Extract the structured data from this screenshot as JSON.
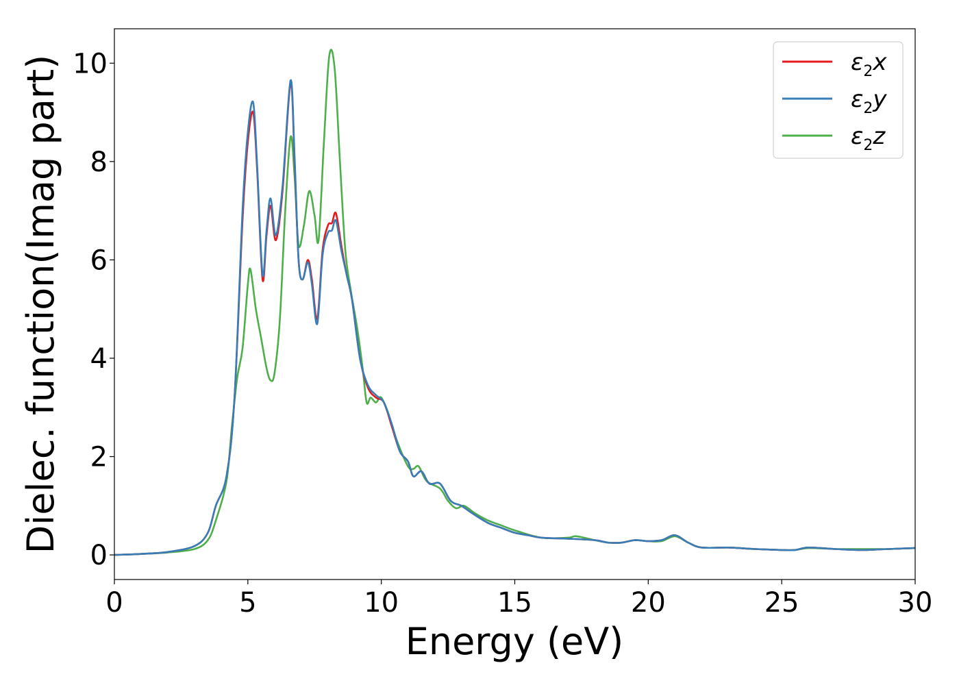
{
  "chart_data": {
    "type": "line",
    "title": "",
    "xlabel": "Energy (eV)",
    "ylabel": "Dielec. function(Imag part)",
    "xlim": [
      0,
      30
    ],
    "ylim": [
      -0.5,
      10.7
    ],
    "xticks": [
      0,
      5,
      10,
      15,
      20,
      25,
      30
    ],
    "yticks": [
      0,
      2,
      4,
      6,
      8,
      10
    ],
    "grid": false,
    "legend_position": "top-right",
    "series": [
      {
        "name": "ε2x",
        "label_main": "ε",
        "label_sub": "2",
        "label_suffix": "x",
        "color": "#e41a1c",
        "points": [
          [
            0,
            0.0
          ],
          [
            1,
            0.02
          ],
          [
            2,
            0.06
          ],
          [
            3,
            0.18
          ],
          [
            3.5,
            0.45
          ],
          [
            3.8,
            1.0
          ],
          [
            4.2,
            1.6
          ],
          [
            4.5,
            3.2
          ],
          [
            4.8,
            6.8
          ],
          [
            5.0,
            8.4
          ],
          [
            5.2,
            9.0
          ],
          [
            5.35,
            7.8
          ],
          [
            5.55,
            5.6
          ],
          [
            5.7,
            6.5
          ],
          [
            5.85,
            7.1
          ],
          [
            6.05,
            6.4
          ],
          [
            6.3,
            7.4
          ],
          [
            6.6,
            9.6
          ],
          [
            6.75,
            8.0
          ],
          [
            6.9,
            6.0
          ],
          [
            7.05,
            5.6
          ],
          [
            7.25,
            6.0
          ],
          [
            7.4,
            5.6
          ],
          [
            7.6,
            4.8
          ],
          [
            7.8,
            6.2
          ],
          [
            8.0,
            6.7
          ],
          [
            8.15,
            6.75
          ],
          [
            8.3,
            6.95
          ],
          [
            8.5,
            6.3
          ],
          [
            8.7,
            5.7
          ],
          [
            8.9,
            5.2
          ],
          [
            9.2,
            4.0
          ],
          [
            9.5,
            3.4
          ],
          [
            9.8,
            3.2
          ],
          [
            10.1,
            3.1
          ],
          [
            10.4,
            2.6
          ],
          [
            10.7,
            2.1
          ],
          [
            11.0,
            1.9
          ],
          [
            11.2,
            1.6
          ],
          [
            11.5,
            1.7
          ],
          [
            11.8,
            1.45
          ],
          [
            12.2,
            1.45
          ],
          [
            12.6,
            1.1
          ],
          [
            13.0,
            1.0
          ],
          [
            13.4,
            0.85
          ],
          [
            14.0,
            0.65
          ],
          [
            14.5,
            0.55
          ],
          [
            15.0,
            0.45
          ],
          [
            15.5,
            0.4
          ],
          [
            16.0,
            0.35
          ],
          [
            17.0,
            0.33
          ],
          [
            18.0,
            0.3
          ],
          [
            18.5,
            0.25
          ],
          [
            19.0,
            0.25
          ],
          [
            19.5,
            0.3
          ],
          [
            20.0,
            0.28
          ],
          [
            20.5,
            0.3
          ],
          [
            21.0,
            0.4
          ],
          [
            21.5,
            0.25
          ],
          [
            22.0,
            0.15
          ],
          [
            23.0,
            0.15
          ],
          [
            24.0,
            0.12
          ],
          [
            25.0,
            0.1
          ],
          [
            25.5,
            0.1
          ],
          [
            26.0,
            0.15
          ],
          [
            27.0,
            0.12
          ],
          [
            28.0,
            0.1
          ],
          [
            29.0,
            0.12
          ],
          [
            30.0,
            0.14
          ]
        ]
      },
      {
        "name": "ε2y",
        "label_main": "ε",
        "label_sub": "2",
        "label_suffix": "y",
        "color": "#377eb8",
        "points": [
          [
            0,
            0.0
          ],
          [
            1,
            0.02
          ],
          [
            2,
            0.06
          ],
          [
            3,
            0.18
          ],
          [
            3.5,
            0.45
          ],
          [
            3.8,
            1.0
          ],
          [
            4.2,
            1.6
          ],
          [
            4.5,
            3.2
          ],
          [
            4.8,
            7.0
          ],
          [
            5.0,
            8.6
          ],
          [
            5.2,
            9.2
          ],
          [
            5.35,
            7.9
          ],
          [
            5.55,
            5.7
          ],
          [
            5.7,
            6.6
          ],
          [
            5.85,
            7.25
          ],
          [
            6.05,
            6.5
          ],
          [
            6.3,
            7.5
          ],
          [
            6.6,
            9.65
          ],
          [
            6.75,
            8.1
          ],
          [
            6.9,
            6.0
          ],
          [
            7.05,
            5.6
          ],
          [
            7.25,
            5.95
          ],
          [
            7.4,
            5.5
          ],
          [
            7.6,
            4.7
          ],
          [
            7.8,
            6.1
          ],
          [
            8.0,
            6.55
          ],
          [
            8.15,
            6.6
          ],
          [
            8.3,
            6.8
          ],
          [
            8.5,
            6.2
          ],
          [
            8.7,
            5.7
          ],
          [
            8.9,
            5.2
          ],
          [
            9.2,
            4.0
          ],
          [
            9.5,
            3.45
          ],
          [
            9.8,
            3.25
          ],
          [
            10.1,
            3.1
          ],
          [
            10.4,
            2.65
          ],
          [
            10.7,
            2.1
          ],
          [
            11.0,
            1.9
          ],
          [
            11.2,
            1.6
          ],
          [
            11.5,
            1.7
          ],
          [
            11.8,
            1.45
          ],
          [
            12.2,
            1.45
          ],
          [
            12.6,
            1.1
          ],
          [
            13.0,
            1.0
          ],
          [
            13.4,
            0.85
          ],
          [
            14.0,
            0.65
          ],
          [
            14.5,
            0.55
          ],
          [
            15.0,
            0.45
          ],
          [
            15.5,
            0.4
          ],
          [
            16.0,
            0.35
          ],
          [
            17.0,
            0.33
          ],
          [
            18.0,
            0.3
          ],
          [
            18.5,
            0.25
          ],
          [
            19.0,
            0.25
          ],
          [
            19.5,
            0.3
          ],
          [
            20.0,
            0.28
          ],
          [
            20.5,
            0.3
          ],
          [
            21.0,
            0.4
          ],
          [
            21.5,
            0.25
          ],
          [
            22.0,
            0.15
          ],
          [
            23.0,
            0.15
          ],
          [
            24.0,
            0.12
          ],
          [
            25.0,
            0.1
          ],
          [
            25.5,
            0.1
          ],
          [
            26.0,
            0.15
          ],
          [
            27.0,
            0.12
          ],
          [
            28.0,
            0.1
          ],
          [
            29.0,
            0.12
          ],
          [
            30.0,
            0.14
          ]
        ]
      },
      {
        "name": "ε2z",
        "label_main": "ε",
        "label_sub": "2",
        "label_suffix": "z",
        "color": "#4daf4a",
        "points": [
          [
            0,
            0.0
          ],
          [
            1,
            0.02
          ],
          [
            2,
            0.05
          ],
          [
            3,
            0.12
          ],
          [
            3.5,
            0.3
          ],
          [
            3.8,
            0.7
          ],
          [
            4.2,
            1.5
          ],
          [
            4.4,
            2.6
          ],
          [
            4.6,
            3.6
          ],
          [
            4.8,
            4.2
          ],
          [
            5.0,
            5.5
          ],
          [
            5.1,
            5.8
          ],
          [
            5.3,
            5.0
          ],
          [
            5.5,
            4.4
          ],
          [
            5.7,
            3.8
          ],
          [
            5.85,
            3.55
          ],
          [
            6.0,
            3.7
          ],
          [
            6.2,
            4.8
          ],
          [
            6.4,
            7.0
          ],
          [
            6.6,
            8.5
          ],
          [
            6.75,
            7.7
          ],
          [
            6.9,
            6.3
          ],
          [
            7.1,
            6.7
          ],
          [
            7.3,
            7.4
          ],
          [
            7.5,
            6.9
          ],
          [
            7.65,
            6.4
          ],
          [
            7.85,
            8.4
          ],
          [
            8.05,
            10.15
          ],
          [
            8.25,
            9.9
          ],
          [
            8.45,
            8.0
          ],
          [
            8.65,
            6.2
          ],
          [
            8.85,
            5.4
          ],
          [
            9.1,
            4.6
          ],
          [
            9.3,
            3.8
          ],
          [
            9.45,
            3.1
          ],
          [
            9.6,
            3.2
          ],
          [
            9.8,
            3.1
          ],
          [
            10.0,
            3.2
          ],
          [
            10.3,
            2.8
          ],
          [
            10.6,
            2.3
          ],
          [
            11.0,
            1.8
          ],
          [
            11.2,
            1.75
          ],
          [
            11.4,
            1.8
          ],
          [
            11.7,
            1.5
          ],
          [
            12.2,
            1.35
          ],
          [
            12.5,
            1.1
          ],
          [
            12.8,
            0.95
          ],
          [
            13.1,
            1.0
          ],
          [
            13.5,
            0.85
          ],
          [
            14.0,
            0.7
          ],
          [
            14.5,
            0.6
          ],
          [
            15.0,
            0.5
          ],
          [
            16.0,
            0.35
          ],
          [
            17.0,
            0.35
          ],
          [
            17.3,
            0.38
          ],
          [
            18.0,
            0.3
          ],
          [
            18.5,
            0.25
          ],
          [
            19.0,
            0.25
          ],
          [
            19.5,
            0.3
          ],
          [
            20.0,
            0.28
          ],
          [
            20.5,
            0.28
          ],
          [
            21.0,
            0.38
          ],
          [
            21.5,
            0.25
          ],
          [
            22.0,
            0.15
          ],
          [
            23.0,
            0.15
          ],
          [
            24.0,
            0.12
          ],
          [
            25.0,
            0.1
          ],
          [
            25.5,
            0.1
          ],
          [
            26.0,
            0.14
          ],
          [
            27.0,
            0.12
          ],
          [
            28.0,
            0.12
          ],
          [
            29.0,
            0.12
          ],
          [
            30.0,
            0.14
          ]
        ]
      }
    ]
  }
}
